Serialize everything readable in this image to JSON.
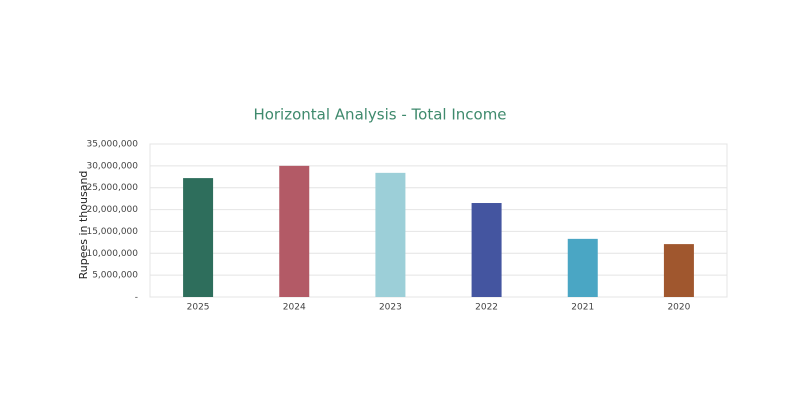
{
  "chart_data": {
    "type": "bar",
    "title": "Horizontal Analysis  -  Total Income",
    "y_label": "Rupees in thousand",
    "categories": [
      "2025",
      "2024",
      "2023",
      "2022",
      "2021",
      "2020"
    ],
    "values": [
      27200000,
      30000000,
      28400000,
      21500000,
      13300000,
      12100000
    ],
    "colors": [
      "#2e6e5c",
      "#b35a66",
      "#9ccfd8",
      "#4455a0",
      "#4aa6c4",
      "#a0572e"
    ],
    "ylim": [
      0,
      35000000
    ],
    "yticks": [
      {
        "value": 0,
        "label": "-"
      },
      {
        "value": 5000000,
        "label": "5,000,000"
      },
      {
        "value": 10000000,
        "label": "10,000,000"
      },
      {
        "value": 15000000,
        "label": "15,000,000"
      },
      {
        "value": 20000000,
        "label": "20,000,000"
      },
      {
        "value": 25000000,
        "label": "25,000,000"
      },
      {
        "value": 30000000,
        "label": "30,000,000"
      },
      {
        "value": 35000000,
        "label": "35,000,000"
      }
    ],
    "grid": true
  }
}
